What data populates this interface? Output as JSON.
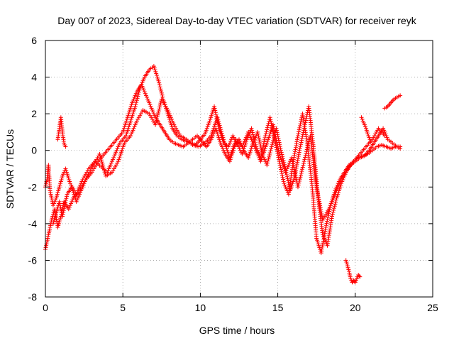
{
  "chart_data": {
    "type": "scatter",
    "title": "Day 007 of 2023, Sidereal Day-to-day VTEC variation (SDTVAR) for receiver reyk",
    "xlabel": "GPS time / hours",
    "ylabel": "SDTVAR / TECUs",
    "xlim": [
      0,
      25
    ],
    "ylim": [
      -8,
      6
    ],
    "xticks": [
      0,
      5,
      10,
      15,
      20,
      25
    ],
    "yticks": [
      -8,
      -6,
      -4,
      -2,
      0,
      2,
      4,
      6
    ],
    "xtick_labels": [
      "0",
      "5",
      "10",
      "15",
      "20",
      "25"
    ],
    "ytick_labels": [
      "-8",
      "-6",
      "-4",
      "-2",
      "0",
      "2",
      "4",
      "6"
    ],
    "grid": true,
    "marker": "+",
    "color": "#ff0000",
    "series": [
      {
        "name": "track-a",
        "x": [
          0.0,
          0.1,
          0.2,
          0.3,
          0.5,
          0.7,
          0.9,
          1.1,
          1.3,
          1.6,
          2.0,
          2.4,
          2.8,
          3.2,
          3.6,
          4.0,
          4.4,
          4.8,
          5.2,
          5.5,
          5.8,
          6.1,
          6.4,
          6.7,
          7.0,
          7.3,
          7.6,
          7.9,
          8.2,
          8.5,
          8.8,
          9.1,
          9.4,
          9.7,
          10.0,
          10.3,
          10.6,
          10.9,
          11.2,
          11.5,
          11.8,
          12.1,
          12.4,
          12.7,
          13.0,
          13.3,
          13.6,
          13.9,
          14.2,
          14.5,
          14.8,
          15.1,
          15.4,
          15.7,
          16.0,
          16.3,
          16.6,
          16.9,
          17.2,
          17.5,
          17.8,
          18.1,
          18.4,
          18.7,
          19.0,
          19.3,
          19.6,
          19.9,
          20.2,
          20.5,
          20.8,
          21.1,
          21.4,
          21.7,
          22.0,
          22.3,
          22.6,
          22.9
        ],
        "y": [
          -2.0,
          -1.6,
          -0.8,
          -2.2,
          -3.0,
          -2.6,
          -2.0,
          -1.4,
          -1.0,
          -1.8,
          -2.4,
          -1.6,
          -1.0,
          -0.6,
          -0.9,
          -1.2,
          -0.4,
          0.4,
          0.8,
          1.6,
          2.4,
          3.4,
          4.0,
          4.4,
          4.6,
          3.8,
          2.8,
          2.0,
          1.2,
          0.8,
          0.6,
          0.5,
          0.4,
          0.3,
          0.6,
          0.9,
          1.6,
          2.4,
          1.2,
          0.4,
          0.2,
          0.8,
          0.3,
          -0.2,
          0.6,
          1.2,
          0.2,
          -0.4,
          0.8,
          1.8,
          0.6,
          -0.6,
          -1.8,
          -2.4,
          -0.6,
          0.8,
          2.0,
          0.4,
          -1.8,
          -4.8,
          -5.6,
          -4.2,
          -3.0,
          -2.2,
          -1.6,
          -1.2,
          -0.8,
          -0.6,
          -0.4,
          -0.3,
          -0.2,
          0.0,
          0.2,
          0.3,
          0.2,
          0.1,
          0.2,
          0.2
        ]
      },
      {
        "name": "track-b",
        "x": [
          0.0,
          0.2,
          0.4,
          0.6,
          0.8,
          1.0,
          1.2,
          1.5,
          1.8,
          2.2,
          2.6,
          3.0,
          3.4,
          3.8,
          4.2,
          4.6,
          5.0,
          5.3,
          5.6,
          5.9,
          6.2,
          6.5,
          6.8,
          7.1,
          7.4,
          7.7,
          8.0,
          8.3,
          8.6,
          8.9,
          9.2,
          9.5,
          9.8,
          10.1,
          10.4,
          10.7,
          11.0,
          11.3,
          11.6,
          11.9,
          12.2,
          12.5,
          12.8,
          13.1,
          13.4,
          13.7,
          14.0,
          14.3,
          14.6,
          14.9,
          15.2,
          15.5,
          15.8,
          16.1,
          16.4,
          16.7,
          17.0,
          17.3,
          17.6,
          17.9,
          18.2,
          18.5,
          18.8,
          19.1,
          19.4,
          19.7,
          20.0,
          20.3,
          20.6,
          20.9,
          21.2,
          21.5,
          21.8,
          22.1,
          22.4,
          22.7,
          22.9
        ],
        "y": [
          -5.4,
          -4.6,
          -3.8,
          -3.2,
          -4.2,
          -3.6,
          -2.8,
          -3.2,
          -2.6,
          -2.2,
          -1.6,
          -1.2,
          -0.6,
          -0.2,
          0.2,
          0.6,
          1.0,
          1.8,
          2.6,
          3.2,
          3.6,
          3.0,
          2.4,
          1.8,
          1.4,
          1.0,
          0.6,
          0.4,
          0.3,
          0.2,
          0.4,
          0.6,
          0.8,
          0.5,
          0.2,
          0.6,
          1.2,
          0.4,
          -0.2,
          -0.6,
          0.2,
          0.6,
          0.0,
          -0.4,
          0.4,
          1.0,
          -0.2,
          -0.8,
          0.2,
          1.2,
          0.0,
          -1.0,
          -2.2,
          -1.4,
          0.0,
          1.2,
          2.4,
          0.2,
          -2.6,
          -4.6,
          -5.2,
          -3.6,
          -2.6,
          -1.8,
          -1.2,
          -0.8,
          -0.6,
          -0.4,
          -0.3,
          0.0,
          0.4,
          0.8,
          1.2,
          0.6,
          0.4,
          0.2,
          0.1
        ]
      },
      {
        "name": "track-c",
        "x": [
          0.5,
          0.7,
          0.9,
          1.1,
          1.4,
          1.7,
          2.0,
          2.3,
          2.7,
          3.1,
          3.5,
          3.9,
          4.3,
          4.7,
          5.1,
          5.5,
          5.9,
          6.3,
          6.7,
          7.1,
          7.5,
          7.9,
          8.3,
          8.7,
          9.1,
          9.5,
          9.9,
          10.3,
          10.7,
          11.1,
          11.5,
          11.9,
          12.3,
          12.7,
          13.1,
          13.5,
          13.9,
          14.3,
          14.7,
          15.1,
          15.5,
          15.9,
          16.3,
          16.7,
          17.1,
          17.5,
          17.9,
          18.3,
          18.7,
          19.1,
          19.5,
          19.9,
          20.3,
          20.7,
          21.1,
          21.5,
          21.9
        ],
        "y": [
          -4.0,
          -3.4,
          -2.8,
          -3.6,
          -2.4,
          -2.0,
          -2.8,
          -2.2,
          -1.4,
          -0.8,
          -0.2,
          -1.4,
          -1.2,
          -0.6,
          0.4,
          0.8,
          1.6,
          2.2,
          2.0,
          1.4,
          2.8,
          2.2,
          1.4,
          0.8,
          0.6,
          0.3,
          0.2,
          0.4,
          0.8,
          1.8,
          0.6,
          -0.4,
          0.6,
          0.2,
          1.0,
          0.2,
          -0.6,
          0.4,
          1.4,
          -0.2,
          -1.2,
          -0.4,
          -2.0,
          -0.6,
          0.8,
          -2.0,
          -3.8,
          -3.2,
          -2.4,
          -1.6,
          -1.0,
          -0.6,
          -0.2,
          0.2,
          0.6,
          1.2,
          0.8
        ]
      },
      {
        "name": "track-d",
        "x": [
          0.8,
          0.9,
          1.0,
          1.1,
          1.2,
          1.3
        ],
        "y": [
          0.6,
          1.2,
          1.8,
          1.0,
          0.4,
          0.2
        ]
      },
      {
        "name": "track-e",
        "x": [
          19.4,
          19.5,
          19.6,
          19.7,
          19.8,
          19.9,
          20.0,
          20.1,
          20.2,
          20.3
        ],
        "y": [
          -6.0,
          -6.3,
          -6.6,
          -7.0,
          -7.2,
          -7.1,
          -7.2,
          -7.0,
          -6.8,
          -6.9
        ]
      },
      {
        "name": "track-f",
        "x": [
          20.4,
          20.5,
          20.6,
          20.7,
          20.8,
          20.9,
          21.0
        ],
        "y": [
          1.8,
          1.6,
          1.4,
          1.2,
          0.9,
          0.7,
          0.5
        ]
      },
      {
        "name": "track-g",
        "x": [
          21.9,
          22.1,
          22.3,
          22.5,
          22.7,
          22.9
        ],
        "y": [
          2.3,
          2.4,
          2.6,
          2.8,
          2.9,
          3.0
        ]
      }
    ]
  }
}
